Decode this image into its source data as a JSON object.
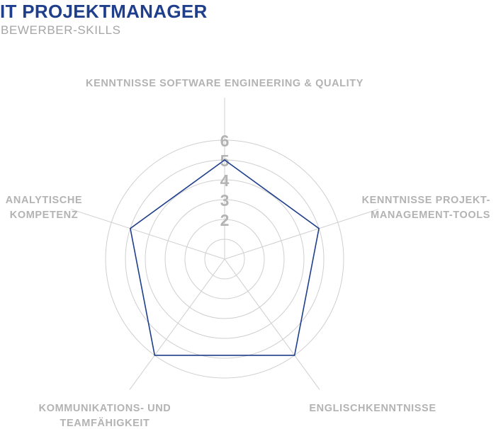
{
  "colors": {
    "title": "#1f3f8c",
    "subtitle": "#a6a6a6",
    "labels": "#b3b3b3",
    "grid": "#cfcfcf",
    "series": "#1f3f8c"
  },
  "chart_data": {
    "type": "radar",
    "title": "IT PROJEKTMANAGER",
    "subtitle": "BEWERBER-SKILLS",
    "axes": [
      [
        "KENNTNISSE SOFTWARE ENGINEERING & QUALITY"
      ],
      [
        "KENNTNISSE PROJEKT-",
        "MANAGEMENT-TOOLS"
      ],
      [
        "ENGLISCHKENNTNISSE"
      ],
      [
        "KOMMUNIKATIONS- UND",
        "TEAMFÄHIGKEIT"
      ],
      [
        "ANALYTISCHE",
        "KOMPETENZ"
      ]
    ],
    "range": [
      0,
      6
    ],
    "ticks": [
      "2",
      "3",
      "4",
      "5",
      "6"
    ],
    "series": [
      {
        "values": [
          5,
          5,
          6,
          6,
          5
        ]
      }
    ],
    "grid": true,
    "legend": "none"
  }
}
